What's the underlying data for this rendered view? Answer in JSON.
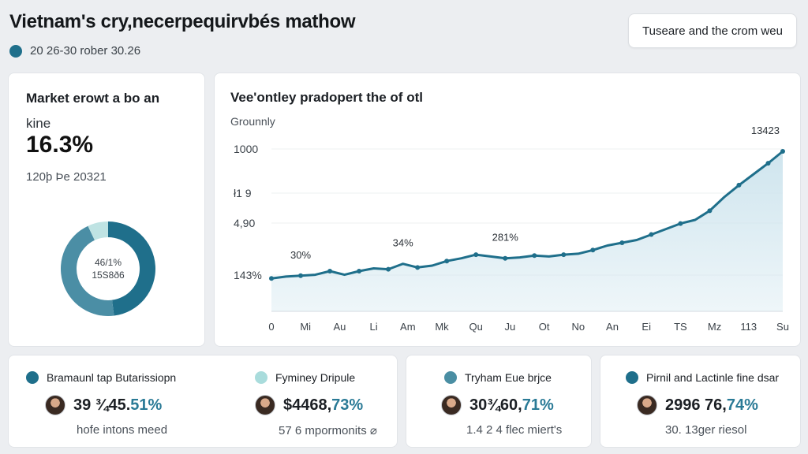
{
  "header": {
    "title": "Vietnam's cry,necerpequirvbés mathow",
    "subtitle": "20 26-30 rober 30.26",
    "subtitle_dot_color": "#1f6f8b",
    "button_label": "Tuseare and the crom weu"
  },
  "kpi": {
    "title": "Market erowt a bo an",
    "label": "kine",
    "value": "16.3%",
    "sub": "120þ Þe 20321",
    "donut_center_line1": "46/1%",
    "donut_center_line2": "15S8ð6",
    "donut_share_dark": 48,
    "donut_share_mid": 45,
    "donut_share_light": 7
  },
  "chart_data": {
    "type": "area",
    "title": "Vee'ontley pradopert the of otl",
    "ylabel": "Grounnly",
    "y_tick_labels": [
      "1000",
      "ł1 9",
      "4,90",
      "143%"
    ],
    "categories": [
      "0",
      "Mi",
      "Au",
      "Li",
      "Am",
      "Mk",
      "Qu",
      "Ju",
      "Ot",
      "No",
      "An",
      "Ei",
      "TS",
      "Mz",
      "113",
      "Su"
    ],
    "x": [
      0,
      1,
      2,
      3,
      4,
      5,
      6,
      7,
      8,
      9,
      10,
      11,
      12,
      13,
      14,
      15,
      16,
      17,
      18,
      19,
      20,
      21,
      22,
      23,
      24,
      25,
      26,
      27,
      28,
      29,
      30,
      31,
      32,
      33,
      34,
      35
    ],
    "values": [
      36,
      38,
      39,
      40,
      44,
      40,
      44,
      47,
      46,
      52,
      48,
      50,
      55,
      58,
      62,
      60,
      58,
      59,
      61,
      60,
      62,
      63,
      67,
      72,
      75,
      78,
      84,
      90,
      96,
      100,
      110,
      125,
      138,
      150,
      162,
      175
    ],
    "ylim": [
      0,
      200
    ],
    "annotations": [
      {
        "label": "30%",
        "index": 2
      },
      {
        "label": "34%",
        "index": 9
      },
      {
        "label": "281%",
        "index": 16
      },
      {
        "label": "13423",
        "index": 35
      }
    ],
    "line_color": "#1f6f8b",
    "fill_color": "#cfe5ee"
  },
  "stats": [
    {
      "head": "Bramaunl tap Butarissiopn",
      "dot_color": "#1f6f8b",
      "value_main": "39 ¾45.",
      "value_accent": "51%",
      "foot": "hofe intons meed"
    },
    {
      "head": "Fyminey Dripule",
      "dot_color": "#a9dcdc",
      "value_main": "$4468,",
      "value_accent": "73%",
      "foot": "57 6 mpormonits ⌀"
    },
    {
      "head": "Tryham Eue brjce",
      "dot_color": "#4a8ea3",
      "value_main": "30¾60,",
      "value_accent": "71%",
      "foot": "1.4 2 4 flec miert's"
    },
    {
      "head": "Pirnil and Lactinle fine dsar",
      "dot_color": "#1f6f8b",
      "value_main": "2996 76,",
      "value_accent": "74%",
      "foot": "30. 13ger riesol"
    }
  ]
}
